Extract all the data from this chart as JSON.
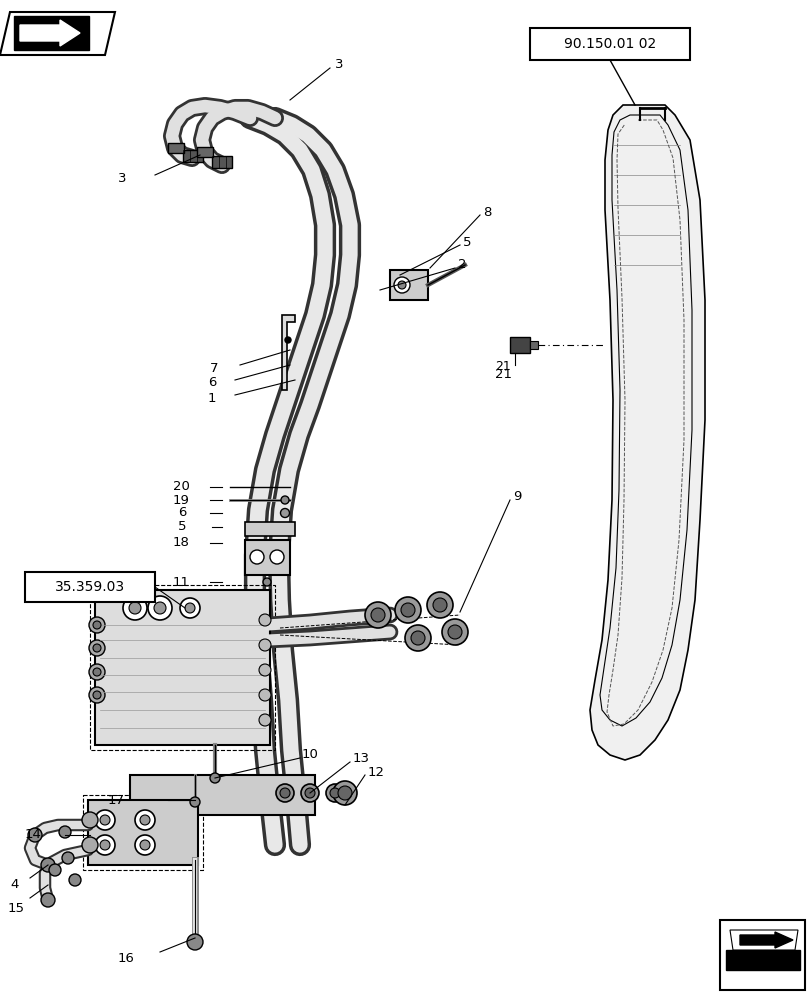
{
  "bg_color": "#ffffff",
  "line_color": "#000000",
  "ref_box1": "90.150.01 02",
  "ref_box2": "35.359.03",
  "figsize": [
    8.12,
    10.0
  ],
  "dpi": 100
}
